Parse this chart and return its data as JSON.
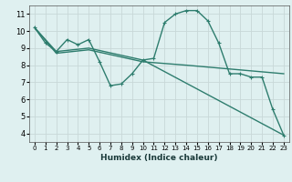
{
  "xlabel": "Humidex (Indice chaleur)",
  "bg_color": "#dff0f0",
  "grid_color": "#c8d8d8",
  "line_color": "#2e7d6e",
  "xlim": [
    -0.5,
    23.5
  ],
  "ylim": [
    3.5,
    11.5
  ],
  "xticks": [
    0,
    1,
    2,
    3,
    4,
    5,
    6,
    7,
    8,
    9,
    10,
    11,
    12,
    13,
    14,
    15,
    16,
    17,
    18,
    19,
    20,
    21,
    22,
    23
  ],
  "yticks": [
    4,
    5,
    6,
    7,
    8,
    9,
    10,
    11
  ],
  "series1_x": [
    0,
    1,
    2,
    3,
    4,
    5,
    6,
    7,
    8,
    9,
    10,
    11,
    12,
    13,
    14,
    15,
    16,
    17,
    18,
    19,
    20,
    21,
    22,
    23
  ],
  "series1_y": [
    10.2,
    9.3,
    8.8,
    9.5,
    9.2,
    9.5,
    8.2,
    6.8,
    6.9,
    7.5,
    8.3,
    8.4,
    10.5,
    11.0,
    11.2,
    11.2,
    10.6,
    9.3,
    7.5,
    7.5,
    7.3,
    7.3,
    5.4,
    3.9
  ],
  "series2_x": [
    0,
    2,
    5,
    10,
    23
  ],
  "series2_y": [
    10.2,
    8.8,
    9.0,
    8.3,
    3.9
  ],
  "series3_x": [
    0,
    2,
    5,
    10,
    14,
    23
  ],
  "series3_y": [
    10.2,
    8.7,
    8.9,
    8.2,
    8.0,
    7.5
  ],
  "line_width": 1.0,
  "marker_size": 3
}
